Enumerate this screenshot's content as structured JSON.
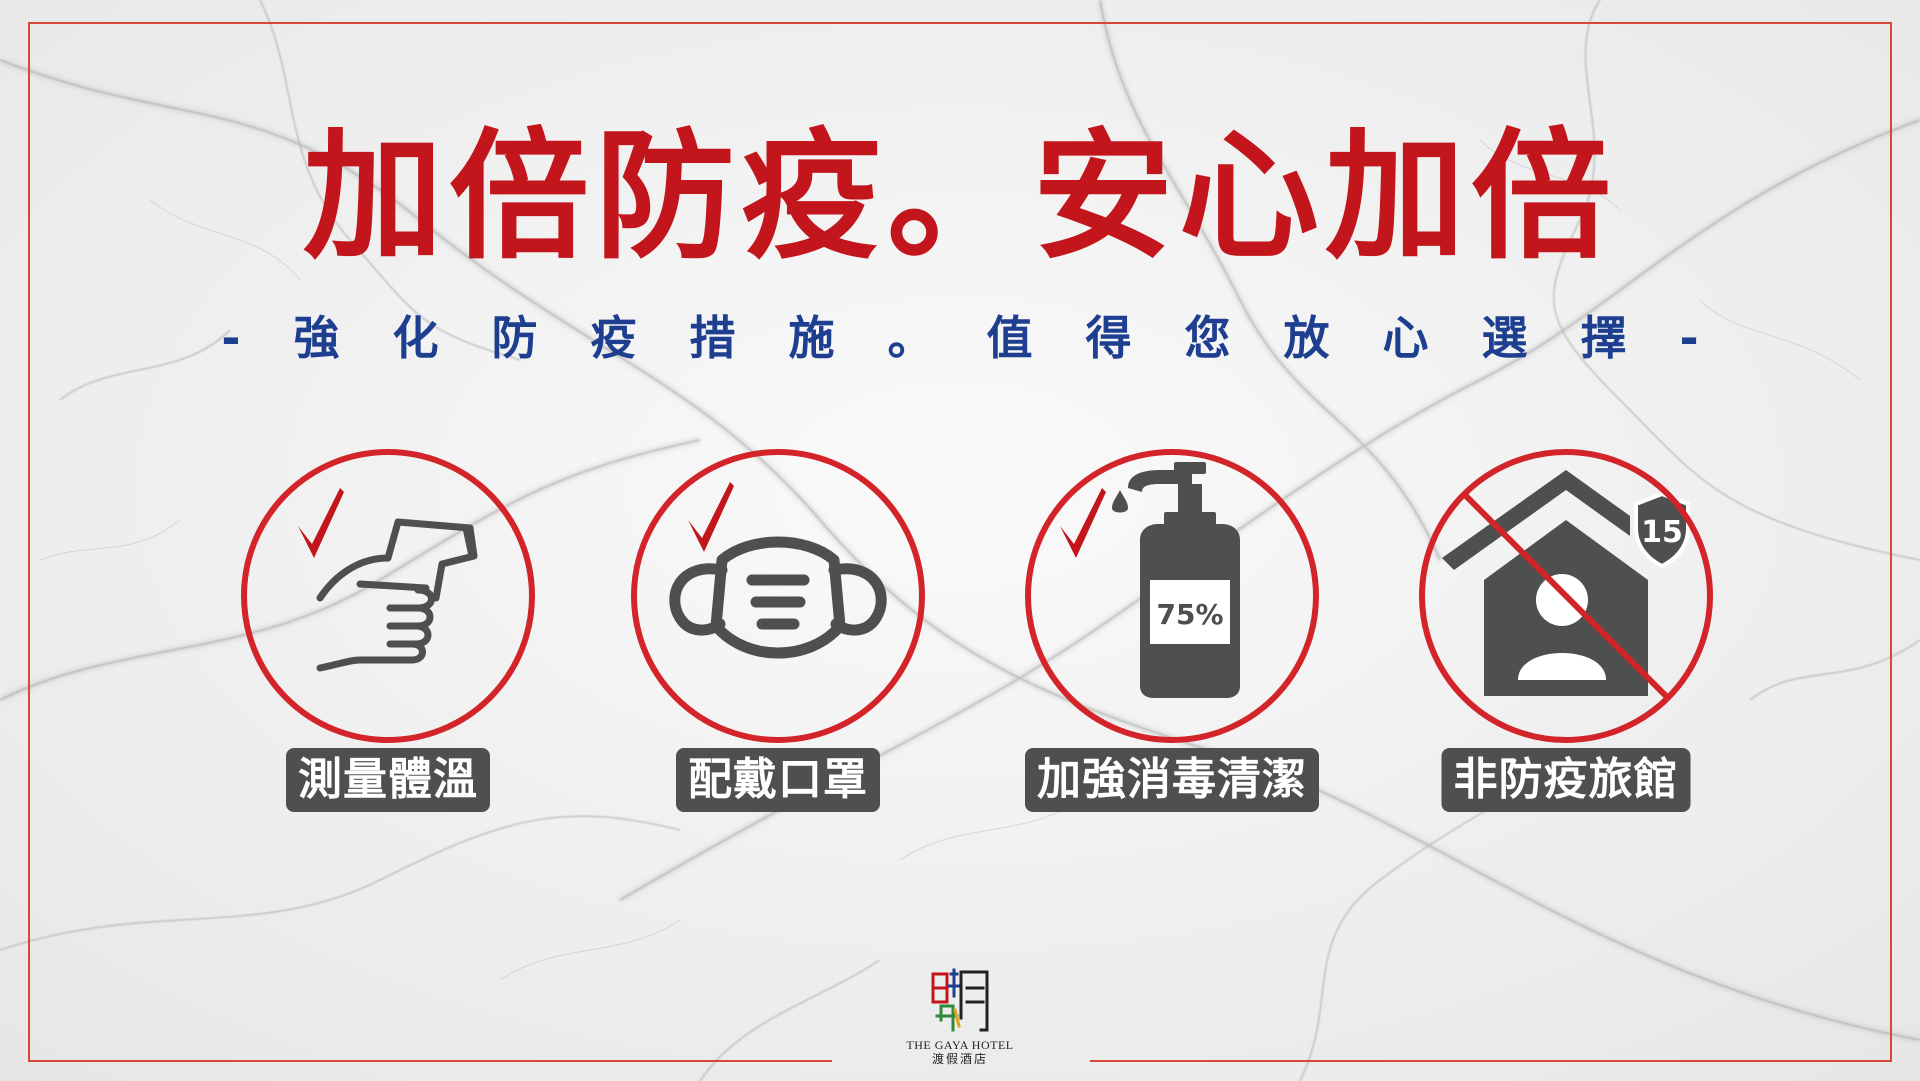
{
  "title": "加倍防疫。安心加倍",
  "subtitle": "-強化防疫措施。值得您放心選擇-",
  "items": [
    {
      "label": "測量體溫",
      "icon": "thermometer-gun-icon",
      "checked": true
    },
    {
      "label": "配戴口罩",
      "icon": "face-mask-icon",
      "checked": true
    },
    {
      "label": "加強消毒清潔",
      "icon": "sanitizer-bottle-icon",
      "checked": true,
      "bottle_text": "75%"
    },
    {
      "label": "非防疫旅館",
      "icon": "no-quarantine-hotel-icon",
      "checked": false,
      "shield_text": "15"
    }
  ],
  "logo": {
    "name_en": "THE GAYA HOTEL",
    "name_zh": "渡假酒店"
  },
  "colors": {
    "title": "#c3161c",
    "subtitle": "#1e3f8f",
    "circle": "#d3242a",
    "check": "#c3161c",
    "icon_gray": "#4f4f4f",
    "label_bg": "#4f4f4f",
    "frame": "#d9463a"
  }
}
